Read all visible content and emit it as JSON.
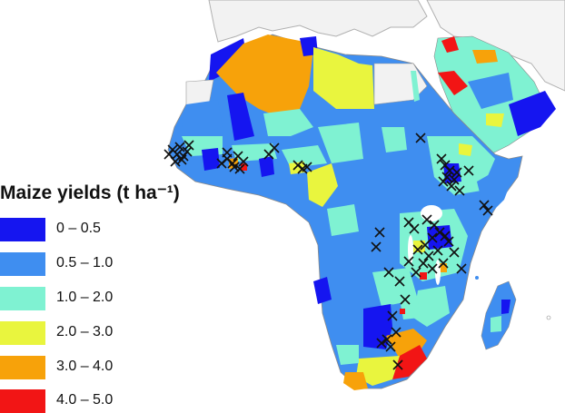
{
  "legend": {
    "title": "Maize yields (t ha⁻¹)",
    "classes": [
      {
        "label": "0 – 0.5",
        "color": "#1515f0"
      },
      {
        "label": "0.5 – 1.0",
        "color": "#3f8ef0"
      },
      {
        "label": "1.0 – 2.0",
        "color": "#7ff2d2"
      },
      {
        "label": "2.0 – 3.0",
        "color": "#e9f53e"
      },
      {
        "label": "3.0 – 4.0",
        "color": "#f7a20a"
      },
      {
        "label": "4.0 – 5.0",
        "color": "#f21515"
      }
    ]
  },
  "map": {
    "region": "Africa",
    "marker_symbol": "cross",
    "colors": {
      "background_land": "#f2f2f2",
      "border": "#9a9a9a",
      "marker": "#111111"
    }
  }
}
